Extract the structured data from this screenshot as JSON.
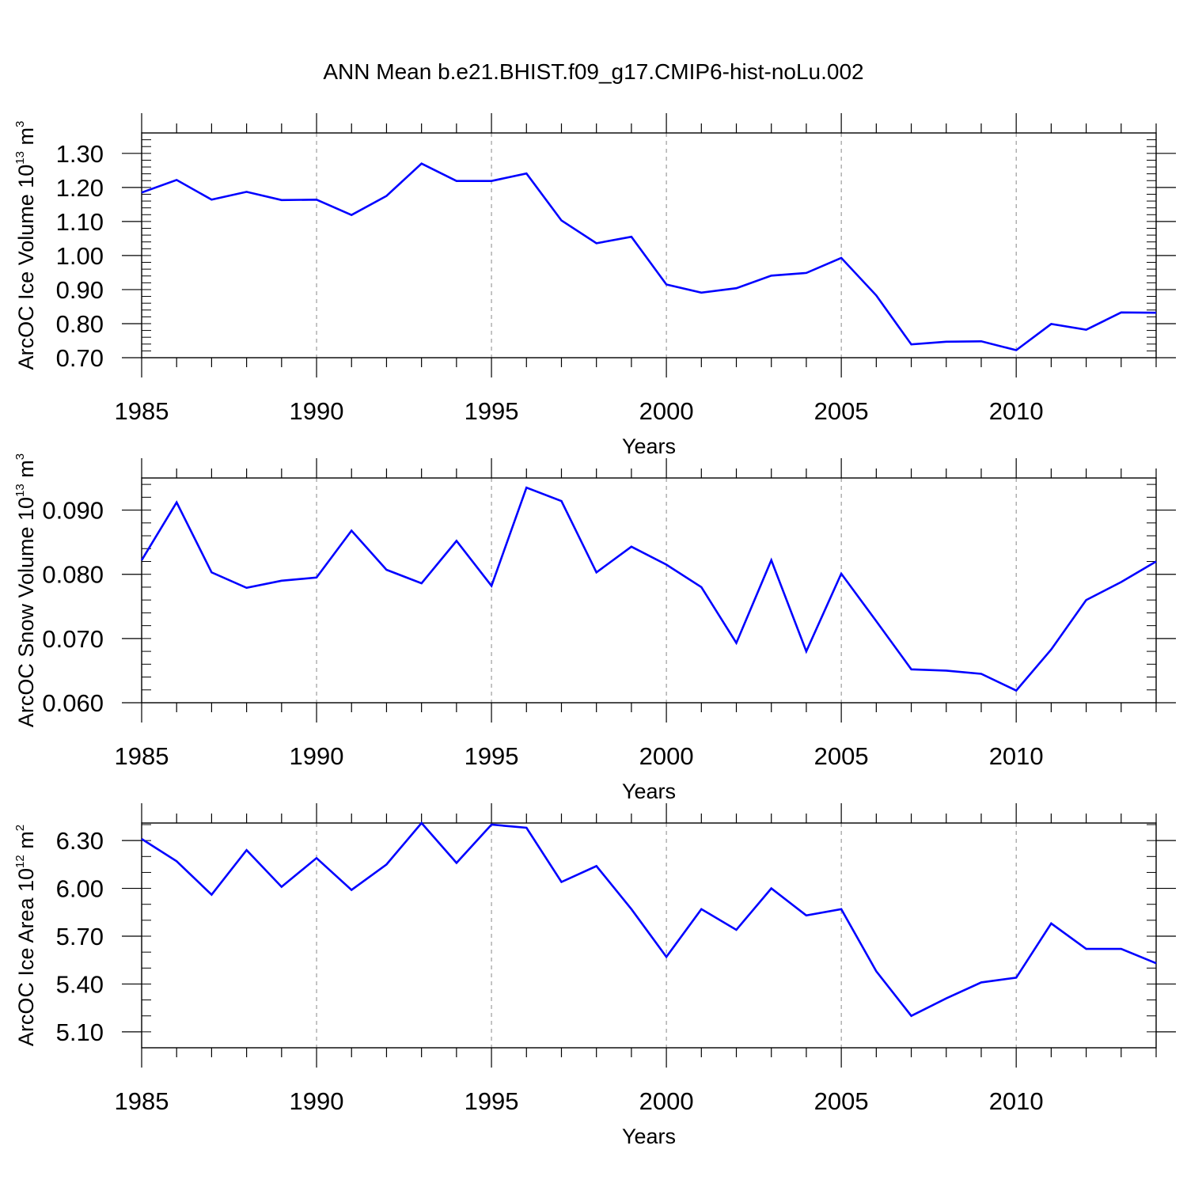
{
  "figure_title": "ANN Mean b.e21.BHIST.f09_g17.CMIP6-hist-noLu.002",
  "chart_data": [
    {
      "type": "line",
      "ylabel": {
        "base": "ArcOC Ice Volume 10",
        "exp": "13",
        "unit": " m",
        "unit_exp": "3"
      },
      "xlabel": "Years",
      "xlim": [
        1985,
        2014
      ],
      "ylim": [
        0.7,
        1.36
      ],
      "x_ticks": [
        "1985",
        "1990",
        "1995",
        "2000",
        "2005",
        "2010"
      ],
      "y_ticks": [
        "0.70",
        "0.80",
        "0.90",
        "1.00",
        "1.10",
        "1.20",
        "1.30"
      ],
      "y_tick_values": [
        0.7,
        0.8,
        0.9,
        1.0,
        1.1,
        1.2,
        1.3
      ],
      "y_minor_step": 0.02,
      "color": "#0000ff",
      "x": [
        1985,
        1986,
        1987,
        1988,
        1989,
        1990,
        1991,
        1992,
        1993,
        1994,
        1995,
        1996,
        1997,
        1998,
        1999,
        2000,
        2001,
        2002,
        2003,
        2004,
        2005,
        2006,
        2007,
        2008,
        2009,
        2010,
        2011,
        2012,
        2013,
        2014
      ],
      "values": [
        1.185,
        1.222,
        1.164,
        1.187,
        1.163,
        1.164,
        1.119,
        1.175,
        1.27,
        1.219,
        1.219,
        1.241,
        1.103,
        1.036,
        1.055,
        0.915,
        0.891,
        0.904,
        0.941,
        0.949,
        0.993,
        0.883,
        0.739,
        0.747,
        0.748,
        0.722,
        0.799,
        0.782,
        0.833,
        0.832
      ]
    },
    {
      "type": "line",
      "ylabel": {
        "base": "ArcOC Snow Volume 10",
        "exp": "13",
        "unit": " m",
        "unit_exp": "3"
      },
      "xlabel": "Years",
      "xlim": [
        1985,
        2014
      ],
      "ylim": [
        0.06,
        0.095
      ],
      "x_ticks": [
        "1985",
        "1990",
        "1995",
        "2000",
        "2005",
        "2010"
      ],
      "y_ticks": [
        "0.060",
        "0.070",
        "0.080",
        "0.090"
      ],
      "y_tick_values": [
        0.06,
        0.07,
        0.08,
        0.09
      ],
      "y_minor_step": 0.002,
      "color": "#0000ff",
      "x": [
        1985,
        1986,
        1987,
        1988,
        1989,
        1990,
        1991,
        1992,
        1993,
        1994,
        1995,
        1996,
        1997,
        1998,
        1999,
        2000,
        2001,
        2002,
        2003,
        2004,
        2005,
        2006,
        2007,
        2008,
        2009,
        2010,
        2011,
        2012,
        2013,
        2014
      ],
      "values": [
        0.0822,
        0.0912,
        0.0803,
        0.0779,
        0.079,
        0.0795,
        0.0868,
        0.0807,
        0.0786,
        0.0852,
        0.0782,
        0.0935,
        0.0914,
        0.0803,
        0.0843,
        0.0815,
        0.078,
        0.0693,
        0.0822,
        0.068,
        0.0801,
        0.0727,
        0.0652,
        0.065,
        0.0645,
        0.0619,
        0.0683,
        0.076,
        0.0788,
        0.082
      ]
    },
    {
      "type": "line",
      "ylabel": {
        "base": "ArcOC Ice Area 10",
        "exp": "12",
        "unit": " m",
        "unit_exp": "2"
      },
      "xlabel": "Years",
      "xlim": [
        1985,
        2014
      ],
      "ylim": [
        5.0,
        6.41
      ],
      "x_ticks": [
        "1985",
        "1990",
        "1995",
        "2000",
        "2005",
        "2010"
      ],
      "y_ticks": [
        "5.10",
        "5.40",
        "5.70",
        "6.00",
        "6.30"
      ],
      "y_tick_values": [
        5.1,
        5.4,
        5.7,
        6.0,
        6.3
      ],
      "y_minor_step": 0.1,
      "color": "#0000ff",
      "x": [
        1985,
        1986,
        1987,
        1988,
        1989,
        1990,
        1991,
        1992,
        1993,
        1994,
        1995,
        1996,
        1997,
        1998,
        1999,
        2000,
        2001,
        2002,
        2003,
        2004,
        2005,
        2006,
        2007,
        2008,
        2009,
        2010,
        2011,
        2012,
        2013,
        2014
      ],
      "values": [
        6.31,
        6.17,
        5.96,
        6.24,
        6.01,
        6.19,
        5.99,
        6.15,
        6.41,
        6.16,
        6.4,
        6.38,
        6.04,
        6.14,
        5.87,
        5.57,
        5.87,
        5.74,
        6.0,
        5.83,
        5.87,
        5.48,
        5.2,
        5.31,
        5.41,
        5.44,
        5.78,
        5.62,
        5.62,
        5.53
      ]
    }
  ]
}
